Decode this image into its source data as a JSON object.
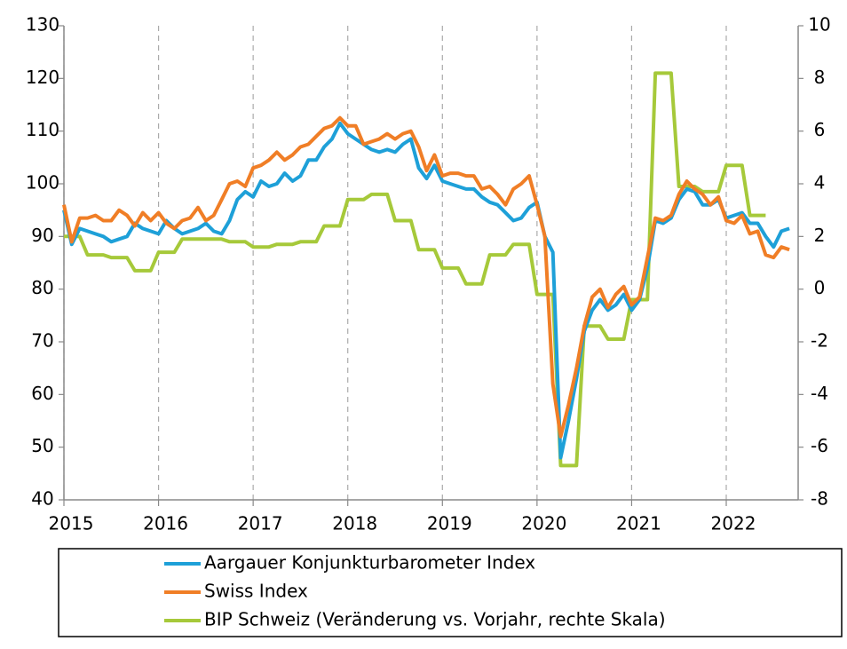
{
  "chart_data": {
    "type": "line",
    "x": [
      2015,
      2015.083,
      2015.167,
      2015.25,
      2015.333,
      2015.417,
      2015.5,
      2015.583,
      2015.667,
      2015.75,
      2015.833,
      2015.917,
      2016,
      2016.083,
      2016.167,
      2016.25,
      2016.333,
      2016.417,
      2016.5,
      2016.583,
      2016.667,
      2016.75,
      2016.833,
      2016.917,
      2017,
      2017.083,
      2017.167,
      2017.25,
      2017.333,
      2017.417,
      2017.5,
      2017.583,
      2017.667,
      2017.75,
      2017.833,
      2017.917,
      2018,
      2018.083,
      2018.167,
      2018.25,
      2018.333,
      2018.417,
      2018.5,
      2018.583,
      2018.667,
      2018.75,
      2018.833,
      2018.917,
      2019,
      2019.083,
      2019.167,
      2019.25,
      2019.333,
      2019.417,
      2019.5,
      2019.583,
      2019.667,
      2019.75,
      2019.833,
      2019.917,
      2020,
      2020.083,
      2020.167,
      2020.25,
      2020.333,
      2020.417,
      2020.5,
      2020.583,
      2020.667,
      2020.75,
      2020.833,
      2020.917,
      2021,
      2021.083,
      2021.167,
      2021.25,
      2021.333,
      2021.417,
      2021.5,
      2021.583,
      2021.667,
      2021.75,
      2021.833,
      2021.917,
      2022,
      2022.083,
      2022.167,
      2022.25,
      2022.333,
      2022.417,
      2022.5,
      2022.583,
      2022.667
    ],
    "series": [
      {
        "name": "Aargauer Konjunkturbarometer Index",
        "color": "#1ea0d8",
        "values": [
          95,
          88.5,
          91.5,
          91,
          90.5,
          90,
          89,
          89.5,
          90,
          92.5,
          91.5,
          91,
          90.5,
          93,
          91.5,
          90.5,
          91,
          91.5,
          92.5,
          91,
          90.5,
          93,
          97,
          98.5,
          97.5,
          100.5,
          99.5,
          100,
          102,
          100.5,
          101.5,
          104.5,
          104.5,
          107,
          108.5,
          111.5,
          109.5,
          108.5,
          107.5,
          106.5,
          106,
          106.5,
          106,
          107.5,
          108.5,
          103,
          101,
          103.5,
          100.5,
          100,
          99.5,
          99,
          99,
          97.5,
          96.5,
          96,
          94.5,
          93,
          93.5,
          95.5,
          96.5,
          90,
          87,
          48,
          55,
          63,
          72,
          76,
          78,
          76,
          77,
          79,
          76,
          78,
          84,
          93,
          92.5,
          93.5,
          97,
          99,
          98.5,
          96,
          96,
          97,
          93.5,
          94,
          94.5,
          92.5,
          92.5,
          90,
          88,
          91,
          91.5
        ]
      },
      {
        "name": "Swiss Index",
        "color": "#f07e26",
        "values": [
          96,
          89,
          93.5,
          93.5,
          94,
          93,
          93,
          95,
          94,
          92,
          94.5,
          93,
          94.5,
          92.5,
          91.5,
          93,
          93.5,
          95.5,
          93,
          94,
          97,
          100,
          100.5,
          99.5,
          103,
          103.5,
          104.5,
          106,
          104.5,
          105.5,
          107,
          107.5,
          109,
          110.5,
          111,
          112.5,
          111,
          111,
          107.5,
          108,
          108.5,
          109.5,
          108.5,
          109.5,
          110,
          107,
          102.5,
          105.5,
          101.5,
          102,
          102,
          101.5,
          101.5,
          99,
          99.5,
          98,
          96,
          99,
          100,
          101.5,
          96,
          90,
          62,
          52,
          58,
          65,
          73,
          78.5,
          80,
          76.5,
          79,
          80.5,
          77,
          78.5,
          86,
          93.5,
          93,
          94,
          98,
          100.5,
          99,
          98,
          96,
          97.5,
          93,
          92.5,
          94,
          90.5,
          91,
          86.5,
          86,
          88,
          87.5
        ]
      },
      {
        "name": "BIP Schweiz (Veränderung vs. Vorjahr, rechte Skala)",
        "color": "#a6c93a",
        "axis": "y2",
        "values": [
          2,
          2,
          2,
          1.3,
          1.3,
          1.3,
          1.2,
          1.2,
          1.2,
          0.7,
          0.7,
          0.7,
          1.4,
          1.4,
          1.4,
          1.9,
          1.9,
          1.9,
          1.9,
          1.9,
          1.9,
          1.8,
          1.8,
          1.8,
          1.6,
          1.6,
          1.6,
          1.7,
          1.7,
          1.7,
          1.8,
          1.8,
          1.8,
          2.4,
          2.4,
          2.4,
          3.4,
          3.4,
          3.4,
          3.6,
          3.6,
          3.6,
          2.6,
          2.6,
          2.6,
          1.5,
          1.5,
          1.5,
          0.8,
          0.8,
          0.8,
          0.2,
          0.2,
          0.2,
          1.3,
          1.3,
          1.3,
          1.7,
          1.7,
          1.7,
          -0.2,
          -0.2,
          -0.2,
          -6.7,
          -6.7,
          -6.7,
          -1.4,
          -1.4,
          -1.4,
          -1.9,
          -1.9,
          -1.9,
          -0.4,
          -0.4,
          -0.4,
          8.2,
          8.2,
          8.2,
          3.9,
          3.9,
          3.9,
          3.7,
          3.7,
          3.7,
          4.7,
          4.7,
          4.7,
          2.8,
          2.8,
          2.8,
          null,
          null,
          null
        ]
      }
    ],
    "xlim": [
      2015,
      2022.76
    ],
    "xticks": [
      2015,
      2016,
      2017,
      2018,
      2019,
      2020,
      2021,
      2022
    ],
    "ylim": [
      40,
      130
    ],
    "yticks": [
      40,
      50,
      60,
      70,
      80,
      90,
      100,
      110,
      120,
      130
    ],
    "y2lim": [
      -8,
      10
    ],
    "y2ticks": [
      -8,
      -6,
      -4,
      -2,
      0,
      2,
      4,
      6,
      8,
      10
    ],
    "grid": "x",
    "legend": "bottom"
  }
}
